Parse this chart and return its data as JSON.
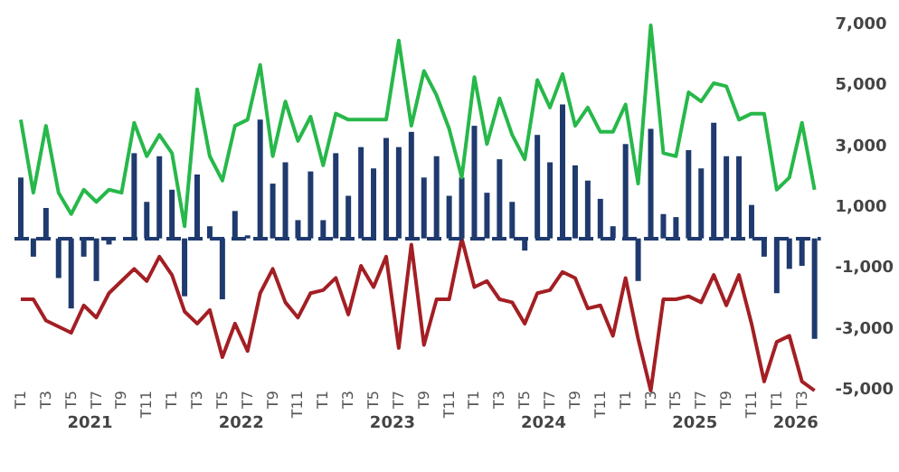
{
  "chart_data": {
    "type": "bar",
    "categories": [
      "T1",
      null,
      "T3",
      null,
      "T5",
      null,
      "T7",
      null,
      "T9",
      null,
      "T11",
      null,
      "T1",
      null,
      "T3",
      null,
      "T5",
      null,
      "T7",
      null,
      "T9",
      null,
      "T11",
      null,
      "T1",
      null,
      "T3",
      null,
      "T5",
      null,
      "T7",
      null,
      "T9",
      null,
      "T11",
      null,
      "T1",
      null,
      "T3",
      null,
      "T5",
      null,
      "T7",
      null,
      "T9",
      null,
      "T11",
      null,
      "T1",
      null,
      "T3",
      null,
      "T5",
      null,
      "T7",
      null,
      "T9",
      null,
      "T11",
      null,
      "T1",
      null,
      "T3",
      null
    ],
    "series": [
      {
        "color": "#1f3a6e",
        "values": [
          2000,
          -600,
          1000,
          -1300,
          -2300,
          -600,
          -1400,
          -200,
          null,
          2800,
          1200,
          2700,
          1600,
          -1900,
          2100,
          400,
          -2000,
          900,
          100,
          3900,
          1800,
          2500,
          600,
          2200,
          600,
          2800,
          1400,
          3000,
          2300,
          3300,
          3000,
          3500,
          2000,
          2700,
          1400,
          2000,
          3700,
          1500,
          2600,
          1200,
          -400,
          3400,
          2500,
          4400,
          2400,
          1900,
          1300,
          400,
          3100,
          -1400,
          3600,
          800,
          700,
          2900,
          2300,
          3800,
          2700,
          2700,
          1100,
          -600,
          -1800,
          -1000,
          -900,
          -3300
        ]
      },
      {
        "type": "line",
        "color": "#27b84a",
        "values": [
          3900,
          1500,
          3700,
          1500,
          800,
          1600,
          1200,
          1600,
          1500,
          3800,
          2700,
          3400,
          2800,
          400,
          4900,
          2700,
          1900,
          3700,
          3900,
          5700,
          2700,
          4500,
          3200,
          4000,
          2400,
          4100,
          3900,
          3900,
          3900,
          3900,
          6500,
          3700,
          5500,
          4700,
          3600,
          2000,
          5300,
          3100,
          4600,
          3400,
          2600,
          5200,
          4300,
          5400,
          3700,
          4300,
          3500,
          3500,
          4400,
          1800,
          7000,
          2800,
          2700,
          4800,
          4500,
          5100,
          5000,
          3900,
          4100,
          4100,
          1600,
          2000,
          3800,
          1600
        ]
      },
      {
        "type": "line",
        "color": "#a31f24",
        "values": [
          -2000,
          -2000,
          -2700,
          -2900,
          -3100,
          -2200,
          -2600,
          -1800,
          -1400,
          -1000,
          -1400,
          -600,
          -1200,
          -2400,
          -2800,
          -2350,
          -3900,
          -2800,
          -3700,
          -1800,
          -1000,
          -2100,
          -2600,
          -1800,
          -1700,
          -1300,
          -2500,
          -900,
          -1600,
          -600,
          -3600,
          -200,
          -3500,
          -2000,
          -2000,
          0,
          -1600,
          -1400,
          -2000,
          -2100,
          -2800,
          -1800,
          -1700,
          -1100,
          -1300,
          -2300,
          -2200,
          -3200,
          -1300,
          -3300,
          -5000,
          -2000,
          -2000,
          -1900,
          -2100,
          -1200,
          -2200,
          -1200,
          -2800,
          -4700,
          -3400,
          -3200,
          -4700,
          -5000
        ]
      }
    ],
    "ylim": [
      -5000,
      7000
    ],
    "yticks": [
      {
        "value": -5000,
        "label": "-5,000"
      },
      {
        "value": -3000,
        "label": "-3,000"
      },
      {
        "value": -1000,
        "label": "-1,000"
      },
      {
        "value": 1000,
        "label": "1,000"
      },
      {
        "value": 3000,
        "label": "3,000"
      },
      {
        "value": 5000,
        "label": "5,000"
      },
      {
        "value": 7000,
        "label": "7,000"
      }
    ],
    "ref_lines": [
      {
        "axis": "y",
        "value": 0,
        "color": "#1f3a6e",
        "line_style": "dashed"
      }
    ],
    "marker": "none",
    "annotations": [
      "2021",
      "2022",
      "2023",
      "2024",
      "2025",
      "2026"
    ]
  }
}
